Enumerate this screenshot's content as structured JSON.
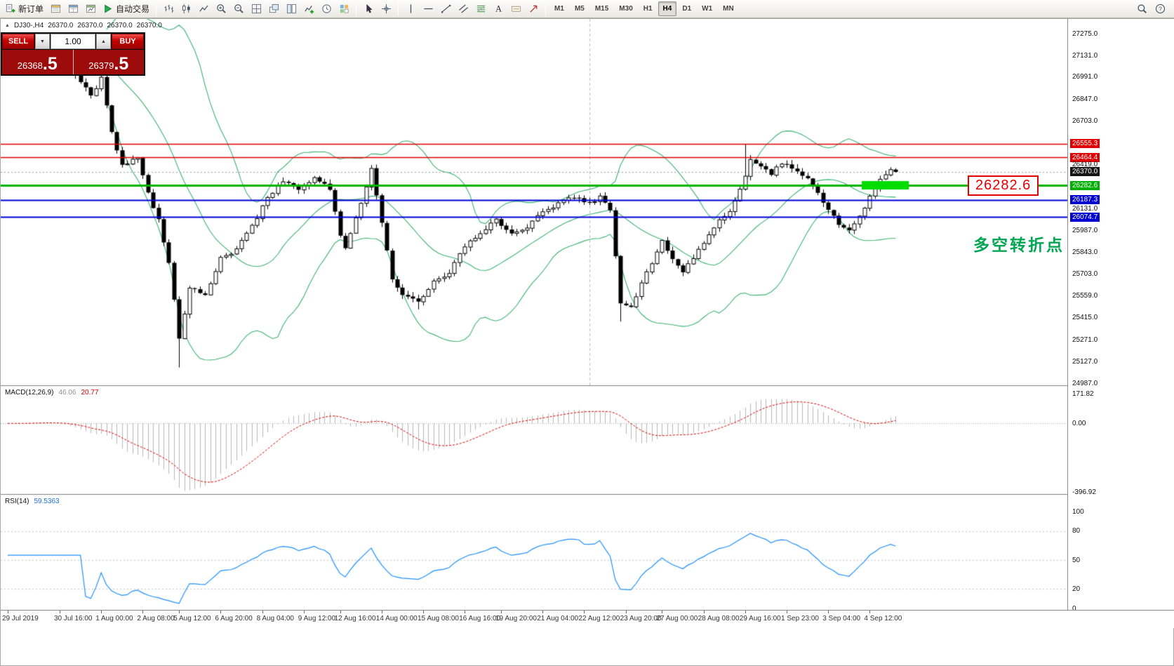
{
  "toolbar": {
    "groups": [
      {
        "name": "trading",
        "buttons": [
          {
            "name": "new-order",
            "icon": "doc-new-icon",
            "label": "新订单"
          },
          {
            "name": "market-watch",
            "icon": "market-watch-icon"
          },
          {
            "name": "data-window",
            "icon": "data-window-icon"
          },
          {
            "name": "navigator",
            "icon": "navigator-icon"
          },
          {
            "name": "autotrading",
            "icon": "autotrade-icon",
            "label": "自动交易"
          }
        ]
      },
      {
        "name": "chart-tools",
        "buttons": [
          {
            "name": "bar-chart",
            "icon": "bars-icon"
          },
          {
            "name": "candlestick-chart",
            "icon": "candles-icon"
          },
          {
            "name": "line-chart",
            "icon": "line-icon"
          },
          {
            "name": "zoom-in",
            "icon": "zoom-in-icon"
          },
          {
            "name": "zoom-out",
            "icon": "zoom-out-icon"
          },
          {
            "name": "tile-windows",
            "icon": "grid-icon"
          },
          {
            "name": "cascade-windows",
            "icon": "cascade-icon"
          },
          {
            "name": "arrange-vertically",
            "icon": "tile-icon"
          },
          {
            "name": "indicators",
            "icon": "indicators-icon"
          },
          {
            "name": "periods",
            "icon": "clock-icon"
          },
          {
            "name": "templates",
            "icon": "template-icon"
          }
        ]
      },
      {
        "name": "cursor-tools",
        "buttons": [
          {
            "name": "cursor",
            "icon": "cursor-icon"
          },
          {
            "name": "crosshair",
            "icon": "crosshair-icon"
          }
        ]
      },
      {
        "name": "draw-tools",
        "buttons": [
          {
            "name": "vertical-line",
            "icon": "vline-icon"
          },
          {
            "name": "horizontal-line",
            "icon": "hline-icon"
          },
          {
            "name": "trendline",
            "icon": "trendline-icon"
          },
          {
            "name": "equidistant-channel",
            "icon": "channel-icon"
          },
          {
            "name": "fibonacci",
            "icon": "fibo-icon"
          },
          {
            "name": "text",
            "icon": "text-icon"
          },
          {
            "name": "text-label",
            "icon": "label-icon"
          },
          {
            "name": "arrows",
            "icon": "arrow-draw-icon"
          }
        ]
      }
    ],
    "timeframes": [
      "M1",
      "M5",
      "M15",
      "M30",
      "H1",
      "H4",
      "D1",
      "W1",
      "MN"
    ],
    "active_timeframe": "H4",
    "right_buttons": [
      {
        "name": "search",
        "icon": "search-icon"
      },
      {
        "name": "help",
        "icon": "help-icon"
      }
    ]
  },
  "quote_bar": {
    "symbol": "DJ30-,H4",
    "open": "26370.0",
    "high": "26370.0",
    "low": "26370.0",
    "close": "26370.0"
  },
  "trade_panel": {
    "sell_label": "SELL",
    "buy_label": "BUY",
    "volume": "1.00",
    "sell_price": {
      "main": "26368",
      "big": ".5"
    },
    "buy_price": {
      "main": "26379",
      "big": ".5"
    }
  },
  "price_axis": {
    "labels": [
      {
        "text": "27275.0",
        "price": 27275.0,
        "style": "plain"
      },
      {
        "text": "27131.0",
        "price": 27131.0,
        "style": "plain"
      },
      {
        "text": "26991.0",
        "price": 26991.0,
        "style": "plain"
      },
      {
        "text": "26847.0",
        "price": 26847.0,
        "style": "plain"
      },
      {
        "text": "26703.0",
        "price": 26703.0,
        "style": "plain"
      },
      {
        "text": "26555.3",
        "price": 26555.3,
        "style": "red"
      },
      {
        "text": "26464.4",
        "price": 26464.4,
        "style": "red"
      },
      {
        "text": "26419.0",
        "price": 26419.0,
        "style": "plain"
      },
      {
        "text": "26370.0",
        "price": 26370.0,
        "style": "current"
      },
      {
        "text": "26282.6",
        "price": 26282.6,
        "style": "green"
      },
      {
        "text": "26187.3",
        "price": 26187.3,
        "style": "blue"
      },
      {
        "text": "26131.0",
        "price": 26131.0,
        "style": "plain"
      },
      {
        "text": "26074.7",
        "price": 26074.7,
        "style": "blue"
      },
      {
        "text": "25987.0",
        "price": 25987.0,
        "style": "plain"
      },
      {
        "text": "25843.0",
        "price": 25843.0,
        "style": "plain"
      },
      {
        "text": "25703.0",
        "price": 25703.0,
        "style": "plain"
      },
      {
        "text": "25559.0",
        "price": 25559.0,
        "style": "plain"
      },
      {
        "text": "25415.0",
        "price": 25415.0,
        "style": "plain"
      },
      {
        "text": "25271.0",
        "price": 25271.0,
        "style": "plain"
      },
      {
        "text": "25127.0",
        "price": 25127.0,
        "style": "plain"
      },
      {
        "text": "24987.0",
        "price": 24987.0,
        "style": "plain"
      }
    ]
  },
  "levels": [
    {
      "name": "resistance-1",
      "price": 26555.3,
      "color": "#e00000",
      "width": 1.4
    },
    {
      "name": "resistance-2",
      "price": 26464.4,
      "color": "#e00000",
      "width": 1.4
    },
    {
      "name": "pivot",
      "price": 26282.6,
      "color": "#00b400",
      "width": 3
    },
    {
      "name": "support-1",
      "price": 26187.3,
      "color": "#0000d8",
      "width": 2
    },
    {
      "name": "support-2",
      "price": 26074.7,
      "color": "#0000d8",
      "width": 2
    }
  ],
  "current_price_line": {
    "price": 26370.0,
    "color": "#9a9a9a"
  },
  "highlight_box": {
    "price": 26282.6,
    "color": "#00dc00",
    "bar_start": 165,
    "bar_end": 173
  },
  "vertical_line": {
    "bar": 112
  },
  "callout": {
    "text": "26282.6",
    "color": "#e00000"
  },
  "annotation": {
    "text": "多空转折点",
    "color": "#00a651"
  },
  "macd_panel": {
    "title": "MACD(12,26,9)",
    "value_main": "46.06",
    "value_signal": "20.77",
    "axis_labels": [
      {
        "text": "171.82",
        "value": 171.82
      },
      {
        "text": "0.00",
        "value": 0
      },
      {
        "text": "-396.92",
        "value": -396.92
      }
    ],
    "range": [
      -396.92,
      171.82
    ]
  },
  "rsi_panel": {
    "title": "RSI(14)",
    "value": "59.5363",
    "axis_labels": [
      {
        "text": "100",
        "value": 100
      },
      {
        "text": "80",
        "value": 80
      },
      {
        "text": "50",
        "value": 50
      },
      {
        "text": "20",
        "value": 20
      },
      {
        "text": "0",
        "value": 0
      }
    ],
    "levels": [
      80,
      50,
      20
    ]
  },
  "time_axis": {
    "labels": [
      {
        "text": "29 Jul 2019",
        "bar": 0
      },
      {
        "text": "30 Jul 16:00",
        "bar": 10
      },
      {
        "text": "1 Aug 00:00",
        "bar": 18
      },
      {
        "text": "2 Aug 08:00",
        "bar": 26
      },
      {
        "text": "5 Aug 12:00",
        "bar": 33
      },
      {
        "text": "6 Aug 20:00",
        "bar": 41
      },
      {
        "text": "8 Aug 04:00",
        "bar": 49
      },
      {
        "text": "9 Aug 12:00",
        "bar": 57
      },
      {
        "text": "12 Aug 16:00",
        "bar": 64
      },
      {
        "text": "14 Aug 00:00",
        "bar": 72
      },
      {
        "text": "15 Aug 08:00",
        "bar": 80
      },
      {
        "text": "16 Aug 16:00",
        "bar": 88
      },
      {
        "text": "19 Aug 20:00",
        "bar": 95
      },
      {
        "text": "21 Aug 04:00",
        "bar": 103
      },
      {
        "text": "22 Aug 12:00",
        "bar": 111
      },
      {
        "text": "23 Aug 20:00",
        "bar": 119
      },
      {
        "text": "27 Aug 00:00",
        "bar": 126
      },
      {
        "text": "28 Aug 08:00",
        "bar": 134
      },
      {
        "text": "29 Aug 16:00",
        "bar": 142
      },
      {
        "text": "1 Sep 23:00",
        "bar": 150
      },
      {
        "text": "3 Sep 04:00",
        "bar": 158
      },
      {
        "text": "4 Sep 12:00",
        "bar": 166
      }
    ]
  },
  "chart_data": {
    "type": "candlestick",
    "symbol": "DJ30-",
    "timeframe": "H4",
    "bars": 172,
    "price_range": [
      24987.0,
      27275.0
    ],
    "ohlc_last": {
      "open": 26370.0,
      "high": 26370.0,
      "low": 26370.0,
      "close": 26370.0
    },
    "candle_colors": {
      "up": "#ffffff",
      "down": "#000000"
    },
    "bollinger": {
      "period": 20,
      "deviation": 2,
      "color": "#3cb371"
    },
    "close_path_anchors": [
      [
        0,
        27150
      ],
      [
        6,
        27190
      ],
      [
        10,
        27120
      ],
      [
        13,
        27000
      ],
      [
        16,
        26870
      ],
      [
        18,
        26980
      ],
      [
        20,
        26620
      ],
      [
        22,
        26420
      ],
      [
        25,
        26460
      ],
      [
        27,
        26230
      ],
      [
        29,
        26060
      ],
      [
        31,
        25780
      ],
      [
        33,
        25280
      ],
      [
        35,
        25620
      ],
      [
        38,
        25560
      ],
      [
        41,
        25800
      ],
      [
        44,
        25860
      ],
      [
        47,
        26010
      ],
      [
        50,
        26200
      ],
      [
        53,
        26310
      ],
      [
        56,
        26260
      ],
      [
        59,
        26330
      ],
      [
        62,
        26260
      ],
      [
        64,
        25960
      ],
      [
        65,
        25880
      ],
      [
        68,
        26160
      ],
      [
        70,
        26390
      ],
      [
        72,
        26030
      ],
      [
        74,
        25660
      ],
      [
        76,
        25560
      ],
      [
        79,
        25520
      ],
      [
        82,
        25650
      ],
      [
        85,
        25710
      ],
      [
        88,
        25890
      ],
      [
        91,
        25960
      ],
      [
        94,
        26060
      ],
      [
        97,
        25960
      ],
      [
        100,
        26010
      ],
      [
        103,
        26110
      ],
      [
        106,
        26160
      ],
      [
        109,
        26210
      ],
      [
        112,
        26160
      ],
      [
        114,
        26210
      ],
      [
        116,
        26120
      ],
      [
        118,
        25520
      ],
      [
        120,
        25490
      ],
      [
        123,
        25710
      ],
      [
        126,
        25910
      ],
      [
        128,
        25810
      ],
      [
        130,
        25720
      ],
      [
        133,
        25860
      ],
      [
        136,
        26010
      ],
      [
        139,
        26120
      ],
      [
        141,
        26260
      ],
      [
        143,
        26440
      ],
      [
        145,
        26410
      ],
      [
        147,
        26360
      ],
      [
        149,
        26430
      ],
      [
        151,
        26390
      ],
      [
        154,
        26340
      ],
      [
        157,
        26180
      ],
      [
        160,
        26030
      ],
      [
        162,
        25990
      ],
      [
        164,
        26080
      ],
      [
        166,
        26200
      ],
      [
        168,
        26320
      ],
      [
        170,
        26390
      ],
      [
        171,
        26370
      ]
    ],
    "low_overrides": {
      "33": 25090,
      "79": 25470,
      "118": 25390
    },
    "high_overrides": {
      "18": 27020,
      "142": 26550
    },
    "indicators": [
      {
        "name": "Bollinger Bands",
        "color": "#3cb371"
      },
      {
        "name": "MACD(12,26,9)",
        "values": [
          46.06,
          20.77
        ]
      },
      {
        "name": "RSI(14)",
        "value": 59.5363
      }
    ]
  }
}
